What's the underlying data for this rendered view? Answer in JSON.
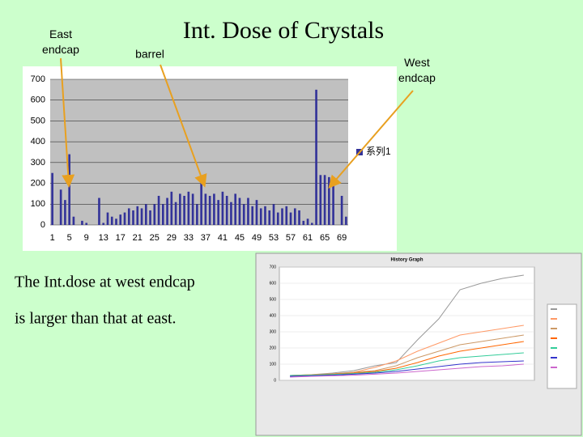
{
  "title": "Int. Dose of Crystals",
  "annotations": [
    "East endcap",
    "barrel",
    "West endcap"
  ],
  "text": [
    "The Int.dose at west endcap",
    "is larger than that at east."
  ],
  "chart_data": [
    {
      "type": "bar",
      "categories": [
        "1",
        null,
        null,
        null,
        "5",
        null,
        null,
        null,
        "9",
        null,
        null,
        null,
        "13",
        null,
        null,
        null,
        "17",
        null,
        null,
        null,
        "21",
        null,
        null,
        null,
        "25",
        null,
        null,
        null,
        "29",
        null,
        null,
        null,
        "33",
        null,
        null,
        null,
        "37",
        null,
        null,
        null,
        "41",
        null,
        null,
        null,
        "45",
        null,
        null,
        null,
        "49",
        null,
        null,
        null,
        "53",
        null,
        null,
        null,
        "57",
        null,
        null,
        null,
        "61",
        null,
        null,
        null,
        "65",
        null,
        null,
        null,
        "69",
        null
      ],
      "series": [
        {
          "name": "系列1",
          "color": "#333399",
          "values": [
            250,
            0,
            170,
            120,
            340,
            40,
            0,
            20,
            10,
            0,
            0,
            130,
            10,
            60,
            40,
            30,
            50,
            60,
            80,
            70,
            90,
            80,
            100,
            70,
            100,
            140,
            100,
            130,
            160,
            110,
            150,
            140,
            160,
            150,
            100,
            200,
            150,
            140,
            150,
            120,
            160,
            140,
            110,
            150,
            130,
            100,
            130,
            90,
            120,
            80,
            90,
            70,
            100,
            60,
            80,
            90,
            60,
            80,
            70,
            20,
            30,
            10,
            650,
            240,
            240,
            230,
            210,
            0,
            140,
            40
          ]
        }
      ],
      "ylim": [
        0,
        700
      ],
      "yticks": [
        0,
        100,
        200,
        300,
        400,
        500,
        600,
        700
      ],
      "grid": true,
      "legend": "right"
    },
    {
      "type": "line",
      "title": "History Graph",
      "categories": [
        null,
        null,
        null,
        null,
        null,
        null,
        null,
        null,
        null,
        null,
        null,
        null
      ],
      "series": [
        {
          "color": "#999999",
          "values": [
            30,
            35,
            45,
            60,
            90,
            110,
            250,
            380,
            560,
            600,
            630,
            650
          ]
        },
        {
          "color": "#ff9966",
          "values": [
            30,
            35,
            40,
            50,
            80,
            120,
            180,
            230,
            280,
            300,
            320,
            340
          ]
        },
        {
          "color": "#cc9966",
          "values": [
            30,
            35,
            40,
            50,
            60,
            90,
            140,
            180,
            220,
            240,
            260,
            280
          ]
        },
        {
          "color": "#ff6600",
          "values": [
            30,
            32,
            38,
            45,
            55,
            75,
            110,
            150,
            180,
            200,
            220,
            240
          ]
        },
        {
          "color": "#33cc99",
          "values": [
            30,
            32,
            36,
            42,
            50,
            65,
            90,
            120,
            140,
            150,
            160,
            170
          ]
        },
        {
          "color": "#3333cc",
          "values": [
            25,
            28,
            32,
            38,
            45,
            55,
            70,
            85,
            100,
            110,
            115,
            120
          ]
        },
        {
          "color": "#cc66cc",
          "values": [
            20,
            25,
            28,
            32,
            38,
            45,
            55,
            65,
            75,
            85,
            90,
            100
          ]
        }
      ],
      "ylim": [
        0,
        700
      ],
      "yticks": [
        0,
        100,
        200,
        300,
        400,
        500,
        600,
        700
      ],
      "grid": true,
      "legend": "right"
    }
  ]
}
